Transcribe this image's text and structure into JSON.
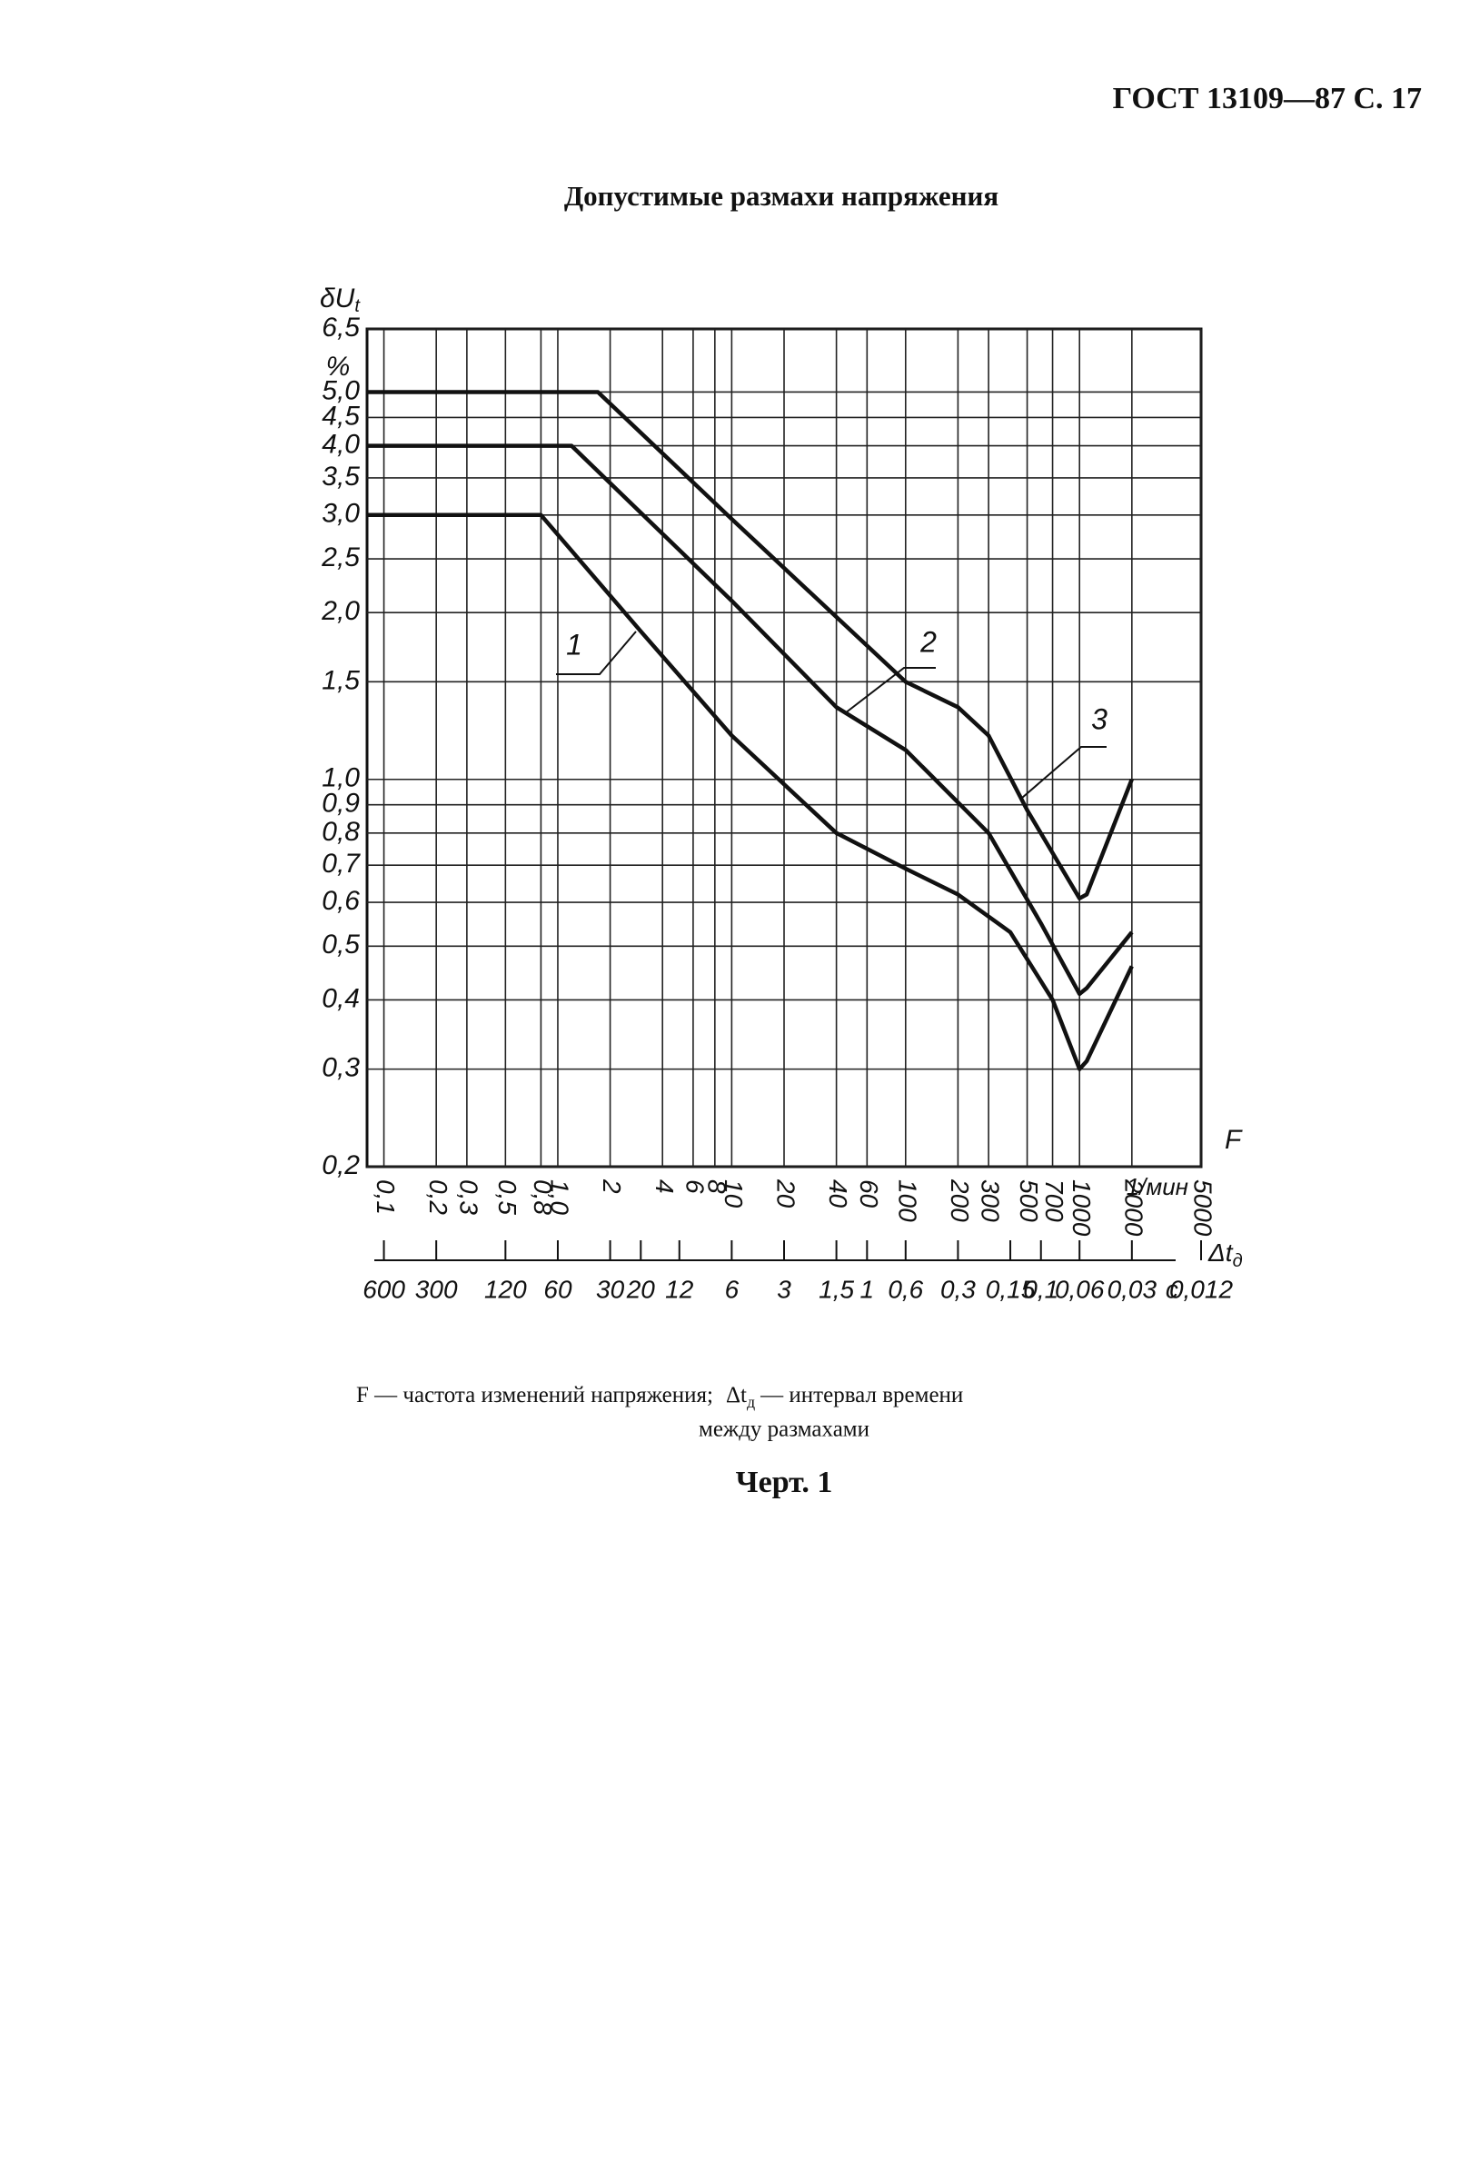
{
  "header": {
    "page_ref": "ГОСТ 13109—87 С. 17"
  },
  "chart_data": {
    "type": "line",
    "title": "Допустимые размахи напряжения",
    "y_label": "δU",
    "y_label_sub": "t",
    "y_unit": "%",
    "x_label": "F",
    "x_unit": "1/мин",
    "x2_label": "Δt",
    "x2_label_sub": "д",
    "x2_unit": "с",
    "log_x": true,
    "log_y": true,
    "grid": true,
    "xlim": [
      0.08,
      5000
    ],
    "ylim": [
      0.2,
      6.5
    ],
    "xticks": [
      {
        "value": 0.1,
        "label": "0,1"
      },
      {
        "value": 0.2,
        "label": "0,2"
      },
      {
        "value": 0.3,
        "label": "0,3"
      },
      {
        "value": 0.5,
        "label": "0,5"
      },
      {
        "value": 0.8,
        "label": "0,8"
      },
      {
        "value": 1,
        "label": "1,0"
      },
      2,
      4,
      6,
      8,
      10,
      20,
      40,
      60,
      100,
      200,
      300,
      500,
      700,
      1000,
      2000,
      5000
    ],
    "yticks": [
      {
        "value": 0.2,
        "label": "0,2"
      },
      {
        "value": 0.3,
        "label": "0,3"
      },
      {
        "value": 0.4,
        "label": "0,4"
      },
      {
        "value": 0.5,
        "label": "0,5"
      },
      {
        "value": 0.6,
        "label": "0,6"
      },
      {
        "value": 0.7,
        "label": "0,7"
      },
      {
        "value": 0.8,
        "label": "0,8"
      },
      {
        "value": 0.9,
        "label": "0,9"
      },
      {
        "value": 1,
        "label": "1,0"
      },
      {
        "value": 1.5,
        "label": "1,5"
      },
      {
        "value": 2,
        "label": "2,0"
      },
      {
        "value": 2.5,
        "label": "2,5"
      },
      {
        "value": 3,
        "label": "3,0"
      },
      {
        "value": 3.5,
        "label": "3,5"
      },
      {
        "value": 4,
        "label": "4,0"
      },
      {
        "value": 4.5,
        "label": "4,5"
      },
      {
        "value": 5,
        "label": "5,0"
      },
      {
        "value": 6.5,
        "label": "6,5"
      }
    ],
    "x2lim": [
      750,
      0.012
    ],
    "x2ticks": [
      600,
      300,
      120,
      60,
      30,
      20,
      12,
      6,
      3,
      {
        "value": 1.5,
        "label": "1,5"
      },
      1,
      {
        "value": 0.6,
        "label": "0,6"
      },
      {
        "value": 0.3,
        "label": "0,3"
      },
      {
        "value": 0.15,
        "label": "0,15"
      },
      {
        "value": 0.1,
        "label": "0,1"
      },
      {
        "value": 0.06,
        "label": "0,06"
      },
      {
        "value": 0.03,
        "label": "0,03"
      },
      {
        "value": 0.012,
        "label": "0,012"
      }
    ],
    "series": [
      {
        "name": "1",
        "color": "#111111",
        "x": [
          0.08,
          0.8,
          3,
          10,
          40,
          100,
          200,
          400,
          700,
          1000,
          1100,
          2000
        ],
        "values": [
          3.0,
          3.0,
          1.85,
          1.2,
          0.8,
          0.69,
          0.62,
          0.53,
          0.4,
          0.3,
          0.31,
          0.46
        ]
      },
      {
        "name": "2",
        "color": "#111111",
        "x": [
          0.08,
          1.2,
          10,
          40,
          100,
          300,
          600,
          1000,
          1100,
          2000
        ],
        "values": [
          4.0,
          4.0,
          2.1,
          1.35,
          1.13,
          0.8,
          0.55,
          0.41,
          0.42,
          0.53
        ]
      },
      {
        "name": "3",
        "color": "#111111",
        "x": [
          0.08,
          1.7,
          10,
          100,
          200,
          300,
          500,
          1000,
          1100,
          2000
        ],
        "values": [
          5.0,
          5.0,
          2.95,
          1.5,
          1.35,
          1.2,
          0.88,
          0.61,
          0.62,
          1.0
        ]
      }
    ]
  },
  "caption": {
    "legend_part1": "F — частота изменений напряжения;",
    "legend_dt": "Δt",
    "legend_dt_sub": "д",
    "legend_part2": "— интервал времени",
    "legend_line2": "между размахами",
    "figure": "Черт. 1"
  }
}
